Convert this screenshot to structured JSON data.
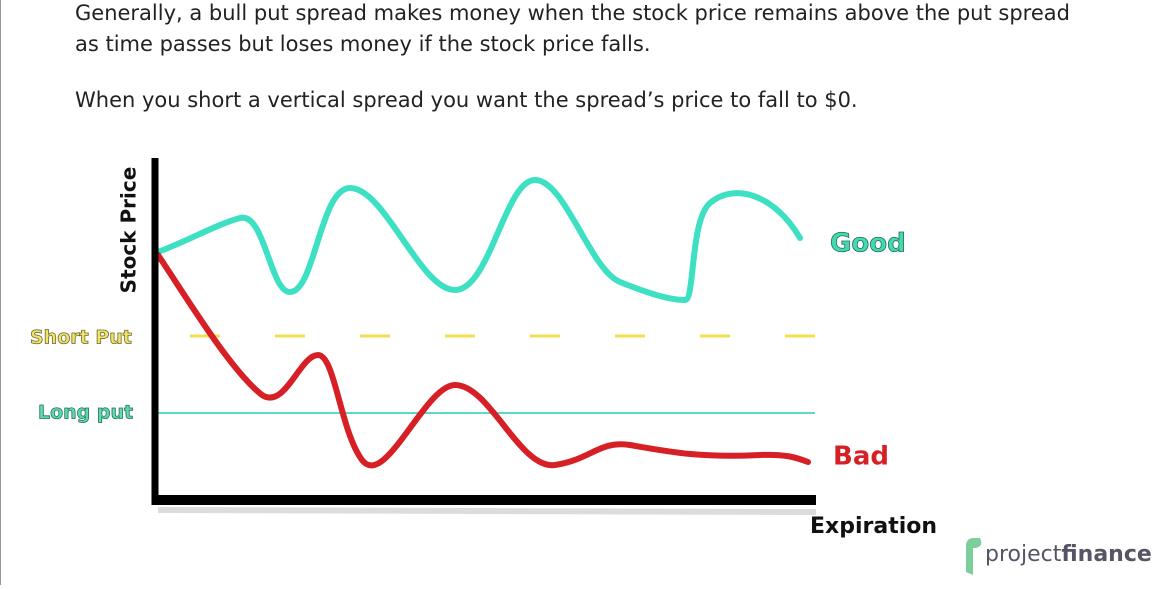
{
  "text": {
    "paragraph_1": [
      "Generally, a bull put spread makes money when the stock price remains above the put spread",
      "as time passes but loses money if the stock price falls."
    ],
    "paragraph_2": "When you short a vertical spread you want the spread’s price to fall to $0."
  },
  "diagram": {
    "y_axis_label": "Stock Price",
    "x_axis_label": "Expiration",
    "short_put_label": "Short Put",
    "long_put_label": "Long put",
    "good_label": "Good",
    "bad_label": "Bad"
  },
  "logo": {
    "part_1": "project",
    "part_2": "finance"
  }
}
